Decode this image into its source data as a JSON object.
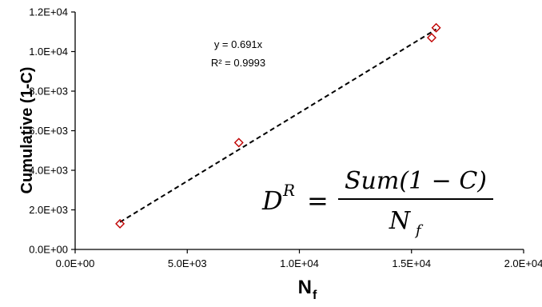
{
  "chart_data": {
    "type": "scatter",
    "xlabel": "N",
    "xlabel_sub": "f",
    "ylabel": "Cumulative (1-C)",
    "xlim": [
      0,
      20000
    ],
    "ylim": [
      0,
      12000
    ],
    "x_ticks": [
      0,
      5000,
      10000,
      15000,
      20000
    ],
    "y_ticks": [
      0,
      2000,
      4000,
      6000,
      8000,
      10000,
      12000
    ],
    "x_tick_labels": [
      "0.0E+00",
      "5.0E+03",
      "1.0E+04",
      "1.5E+04",
      "2.0E+04"
    ],
    "y_tick_labels": [
      "0.0E+00",
      "2.0E+03",
      "4.0E+03",
      "6.0E+03",
      "8.0E+03",
      "1.0E+04",
      "1.2E+04"
    ],
    "grid": false,
    "series": [
      {
        "marker": "diamond-open",
        "color": "#c00000",
        "x": [
          2000,
          7300,
          15900,
          16100
        ],
        "y": [
          1300,
          5400,
          10700,
          11200
        ]
      }
    ],
    "trendline": {
      "style": "dashed",
      "color": "#000000",
      "slope": 0.691,
      "x_range": [
        2000,
        16100
      ]
    },
    "annotations": {
      "equation": "y = 0.691x",
      "r_squared": "R² = 0.9993"
    },
    "formula": {
      "lhs": "D",
      "lhs_sup": "R",
      "equals": "=",
      "numerator": "Sum(1 − C)",
      "denominator": "N",
      "denominator_sub": "f"
    }
  }
}
